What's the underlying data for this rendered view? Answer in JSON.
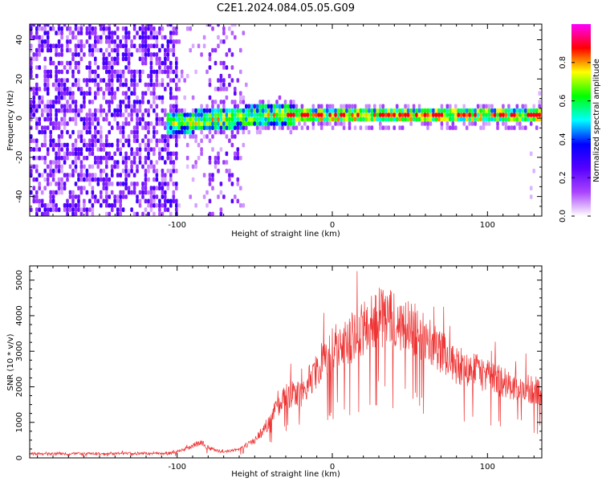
{
  "title": "C2E1.2024.084.05.05.G09",
  "chart_data": [
    {
      "type": "heatmap",
      "xlabel": "Height of straight line (km)",
      "ylabel": "Frequency (Hz)",
      "xlim": [
        -195,
        135
      ],
      "ylim": [
        -50,
        48
      ],
      "xticks": [
        -100,
        0,
        100
      ],
      "yticks": [
        -40,
        -20,
        0,
        20,
        40
      ],
      "grid": false,
      "colorbar": {
        "label": "Normalized spectral amplitude",
        "range": [
          0,
          1
        ],
        "ticks": [
          0.0,
          0.2,
          0.4,
          0.6,
          0.8
        ],
        "colormap": "rainbow",
        "colors": [
          "#ffffff",
          "#aa44ff",
          "#5500ff",
          "#0000ff",
          "#00ffff",
          "#00ff00",
          "#ffff00",
          "#ff0000",
          "#ff00ff"
        ]
      },
      "ridge": {
        "x": [
          -108,
          -95,
          -80,
          -65,
          -50,
          -35,
          -25,
          -10,
          0,
          20,
          40,
          60,
          80,
          100,
          120,
          135
        ],
        "freq": [
          -3,
          -3,
          -2,
          -1,
          0,
          1,
          0,
          0,
          0,
          0,
          0,
          0,
          0,
          0,
          0,
          0
        ]
      }
    },
    {
      "type": "line",
      "xlabel": "Height of straight line (km)",
      "ylabel": "SNR (10 * v/v)",
      "xlim": [
        -195,
        135
      ],
      "ylim": [
        0,
        5400
      ],
      "xticks": [
        -100,
        0,
        100
      ],
      "yticks": [
        0,
        1000,
        2000,
        3000,
        4000,
        5000
      ],
      "line_color": "#ee3333",
      "envelope": {
        "x": [
          -195,
          -170,
          -150,
          -120,
          -105,
          -95,
          -90,
          -85,
          -80,
          -75,
          -70,
          -60,
          -50,
          -45,
          -40,
          -35,
          -30,
          -25,
          -20,
          -15,
          -10,
          -5,
          0,
          10,
          20,
          30,
          40,
          50,
          60,
          70,
          80,
          90,
          100,
          110,
          120,
          130,
          135
        ],
        "y": [
          150,
          160,
          160,
          170,
          180,
          300,
          400,
          550,
          350,
          250,
          200,
          300,
          600,
          900,
          1300,
          1800,
          2100,
          2200,
          2100,
          2600,
          3000,
          3400,
          3700,
          4000,
          4400,
          4800,
          4700,
          4500,
          4100,
          3600,
          3200,
          3000,
          2800,
          2600,
          2400,
          2300,
          2300
        ]
      }
    }
  ]
}
